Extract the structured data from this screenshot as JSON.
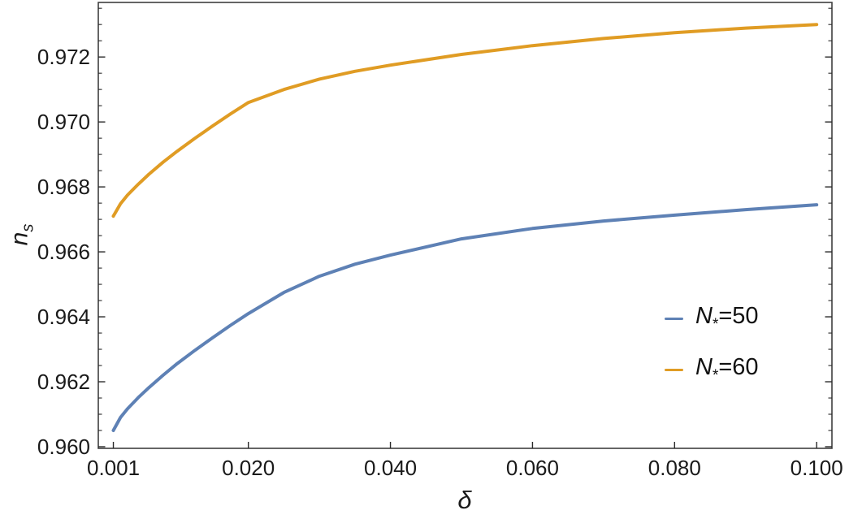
{
  "chart_data": {
    "type": "line",
    "title": "",
    "xlabel": "δ",
    "ylabel_main": "n",
    "ylabel_sub": "s",
    "xlim": [
      -0.00112,
      0.10215
    ],
    "ylim": [
      0.95995,
      0.97368
    ],
    "grid": false,
    "frame": true,
    "legend_position": "inside-bottom-right",
    "text_color": "#1a1a1a",
    "frame_color": "#3f3f3f",
    "tick_color": "#2a2a2a",
    "x_ticks": [
      0.001,
      0.02,
      0.04,
      0.06,
      0.08,
      0.1
    ],
    "x_tick_labels": [
      "0.001",
      "0.020",
      "0.040",
      "0.060",
      "0.080",
      "0.100"
    ],
    "y_ticks": [
      0.96,
      0.962,
      0.964,
      0.966,
      0.968,
      0.97,
      0.972
    ],
    "y_tick_labels": [
      "0.960",
      "0.962",
      "0.964",
      "0.966",
      "0.968",
      "0.970",
      "0.972"
    ],
    "y_minor_ticks": [
      0.9605,
      0.961,
      0.9615,
      0.9625,
      0.963,
      0.9635,
      0.9645,
      0.965,
      0.9655,
      0.9665,
      0.967,
      0.9675,
      0.9685,
      0.969,
      0.9695,
      0.9705,
      0.971,
      0.9715,
      0.9725,
      0.973,
      0.9735
    ],
    "series": [
      {
        "name": "N*=50",
        "label_symbol": "N",
        "label_subscript": "*",
        "label_rest": "=50",
        "color": "#5E81B5",
        "x": [
          0.001,
          0.002,
          0.003,
          0.0045,
          0.006,
          0.008,
          0.01,
          0.0125,
          0.015,
          0.0175,
          0.02,
          0.025,
          0.03,
          0.035,
          0.04,
          0.05,
          0.06,
          0.07,
          0.08,
          0.09,
          0.1
        ],
        "y": [
          0.9605,
          0.9609,
          0.96117,
          0.96151,
          0.96182,
          0.9622,
          0.96256,
          0.96297,
          0.96336,
          0.96374,
          0.9641,
          0.96475,
          0.96525,
          0.96562,
          0.9659,
          0.9664,
          0.96672,
          0.96695,
          0.96713,
          0.9673,
          0.96745
        ]
      },
      {
        "name": "N*=60",
        "label_symbol": "N",
        "label_subscript": "*",
        "label_rest": "=60",
        "color": "#E09C24",
        "x": [
          0.001,
          0.002,
          0.003,
          0.0045,
          0.006,
          0.008,
          0.01,
          0.0125,
          0.015,
          0.0175,
          0.02,
          0.025,
          0.03,
          0.035,
          0.04,
          0.05,
          0.06,
          0.07,
          0.08,
          0.09,
          0.1
        ],
        "y": [
          0.9671,
          0.96748,
          0.96775,
          0.96808,
          0.96839,
          0.96876,
          0.9691,
          0.9695,
          0.96988,
          0.97025,
          0.9706,
          0.971,
          0.97132,
          0.97156,
          0.97175,
          0.97208,
          0.97235,
          0.97257,
          0.97275,
          0.97289,
          0.973
        ]
      }
    ]
  }
}
